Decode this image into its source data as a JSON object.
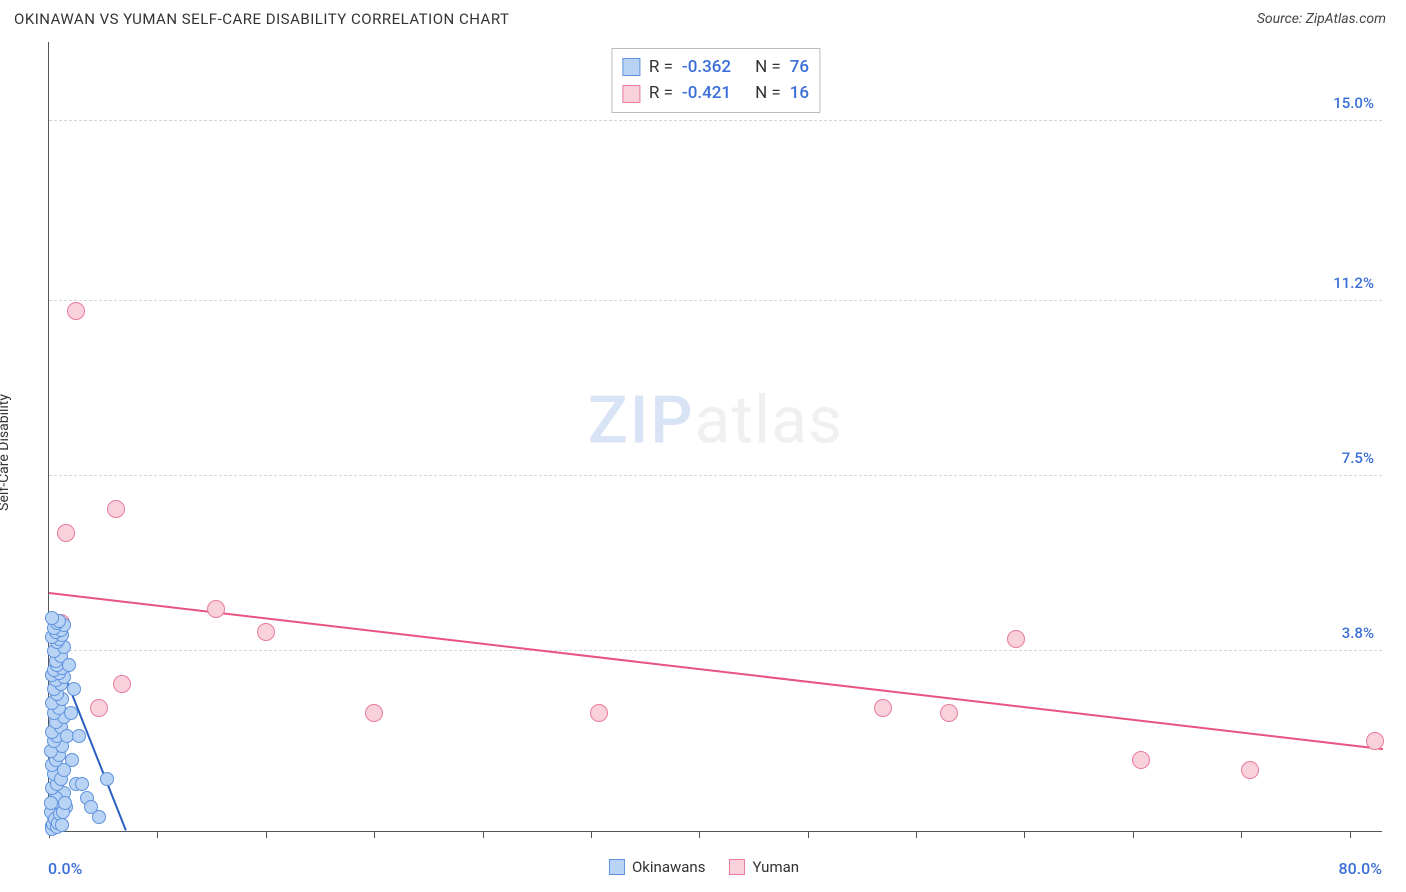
{
  "header": {
    "title": "OKINAWAN VS YUMAN SELF-CARE DISABILITY CORRELATION CHART",
    "source": "Source: ZipAtlas.com"
  },
  "chart": {
    "type": "scatter",
    "ylabel": "Self-Care Disability",
    "watermark": {
      "a": "ZIP",
      "b": "atlas"
    },
    "xlim": [
      0,
      80
    ],
    "ylim": [
      0,
      16.7
    ],
    "x_axis": {
      "min_label": "0.0%",
      "max_label": "80.0%",
      "label_color": "#3a6fd8",
      "ticks": [
        0,
        6.5,
        13,
        19.5,
        26,
        32.5,
        39,
        45.5,
        52,
        58.5,
        65,
        71.5,
        78
      ]
    },
    "y_grid": [
      {
        "v": 3.8,
        "label": "3.8%"
      },
      {
        "v": 7.5,
        "label": "7.5%"
      },
      {
        "v": 11.2,
        "label": "11.2%"
      },
      {
        "v": 15.0,
        "label": "15.0%"
      }
    ],
    "y_tick_color": "#3a6fd8",
    "series": {
      "okinawans": {
        "label": "Okinawans",
        "fill": "#b9d3f4",
        "stroke": "#5f93de",
        "radius": 7,
        "R": "-0.362",
        "N": "76",
        "trend": {
          "x1": 0.0,
          "y1": 4.1,
          "x2": 4.6,
          "y2": 0.0,
          "color": "#2b5fc2",
          "width": 2
        },
        "points": [
          [
            0.2,
            0.1
          ],
          [
            0.3,
            0.3
          ],
          [
            0.1,
            0.4
          ],
          [
            0.4,
            0.2
          ],
          [
            0.6,
            0.15
          ],
          [
            0.8,
            0.5
          ],
          [
            0.9,
            0.8
          ],
          [
            0.4,
            0.7
          ],
          [
            0.2,
            0.9
          ],
          [
            0.5,
            1.0
          ],
          [
            0.3,
            1.2
          ],
          [
            0.7,
            1.1
          ],
          [
            0.9,
            1.3
          ],
          [
            0.2,
            1.4
          ],
          [
            0.4,
            1.5
          ],
          [
            0.6,
            1.6
          ],
          [
            0.1,
            1.7
          ],
          [
            0.8,
            1.8
          ],
          [
            0.3,
            1.9
          ],
          [
            0.5,
            2.0
          ],
          [
            0.2,
            2.1
          ],
          [
            0.7,
            2.2
          ],
          [
            0.4,
            2.3
          ],
          [
            0.9,
            2.4
          ],
          [
            0.3,
            2.5
          ],
          [
            0.6,
            2.6
          ],
          [
            0.2,
            2.7
          ],
          [
            0.8,
            2.8
          ],
          [
            0.5,
            2.9
          ],
          [
            0.3,
            3.0
          ],
          [
            0.7,
            3.1
          ],
          [
            0.4,
            3.2
          ],
          [
            0.9,
            3.25
          ],
          [
            0.2,
            3.3
          ],
          [
            0.6,
            3.35
          ],
          [
            0.3,
            3.4
          ],
          [
            0.8,
            3.45
          ],
          [
            0.5,
            3.5
          ],
          [
            0.4,
            3.6
          ],
          [
            0.7,
            3.7
          ],
          [
            0.3,
            3.8
          ],
          [
            0.9,
            3.9
          ],
          [
            0.5,
            4.0
          ],
          [
            0.6,
            4.05
          ],
          [
            0.2,
            4.1
          ],
          [
            0.8,
            4.15
          ],
          [
            0.4,
            4.2
          ],
          [
            0.7,
            4.25
          ],
          [
            0.3,
            4.3
          ],
          [
            0.9,
            4.35
          ],
          [
            0.5,
            4.4
          ],
          [
            0.6,
            4.45
          ],
          [
            0.2,
            4.5
          ],
          [
            1.1,
            2.0
          ],
          [
            1.3,
            2.5
          ],
          [
            1.5,
            3.0
          ],
          [
            1.2,
            3.5
          ],
          [
            1.4,
            1.5
          ],
          [
            1.0,
            0.5
          ],
          [
            1.6,
            1.0
          ],
          [
            1.8,
            2.0
          ],
          [
            2.0,
            1.0
          ],
          [
            2.3,
            0.7
          ],
          [
            2.5,
            0.5
          ],
          [
            3.0,
            0.3
          ],
          [
            0.15,
            0.05
          ],
          [
            0.25,
            0.15
          ],
          [
            0.35,
            0.25
          ],
          [
            0.45,
            0.08
          ],
          [
            0.55,
            0.18
          ],
          [
            0.65,
            0.35
          ],
          [
            0.75,
            0.12
          ],
          [
            0.1,
            0.6
          ],
          [
            0.85,
            0.4
          ],
          [
            0.95,
            0.6
          ],
          [
            3.5,
            1.1
          ]
        ]
      },
      "yuman": {
        "label": "Yuman",
        "fill": "#f9d1da",
        "stroke": "#e87ba0",
        "radius": 9,
        "R": "-0.421",
        "N": "16",
        "trend": {
          "x1": 0.0,
          "y1": 5.0,
          "x2": 80.0,
          "y2": 1.7,
          "color": "#e8537f",
          "width": 2
        },
        "points": [
          [
            1.6,
            11.0
          ],
          [
            1.0,
            6.3
          ],
          [
            4.0,
            6.8
          ],
          [
            0.7,
            4.4
          ],
          [
            4.4,
            3.1
          ],
          [
            10.0,
            4.7
          ],
          [
            13.0,
            4.2
          ],
          [
            19.5,
            2.5
          ],
          [
            33.0,
            2.5
          ],
          [
            50.0,
            2.6
          ],
          [
            58.0,
            4.05
          ],
          [
            54.0,
            2.5
          ],
          [
            65.5,
            1.5
          ],
          [
            72.0,
            1.3
          ],
          [
            79.5,
            1.9
          ],
          [
            3.0,
            2.6
          ]
        ]
      }
    },
    "top_legend_value_color": "#3a6fd8"
  }
}
